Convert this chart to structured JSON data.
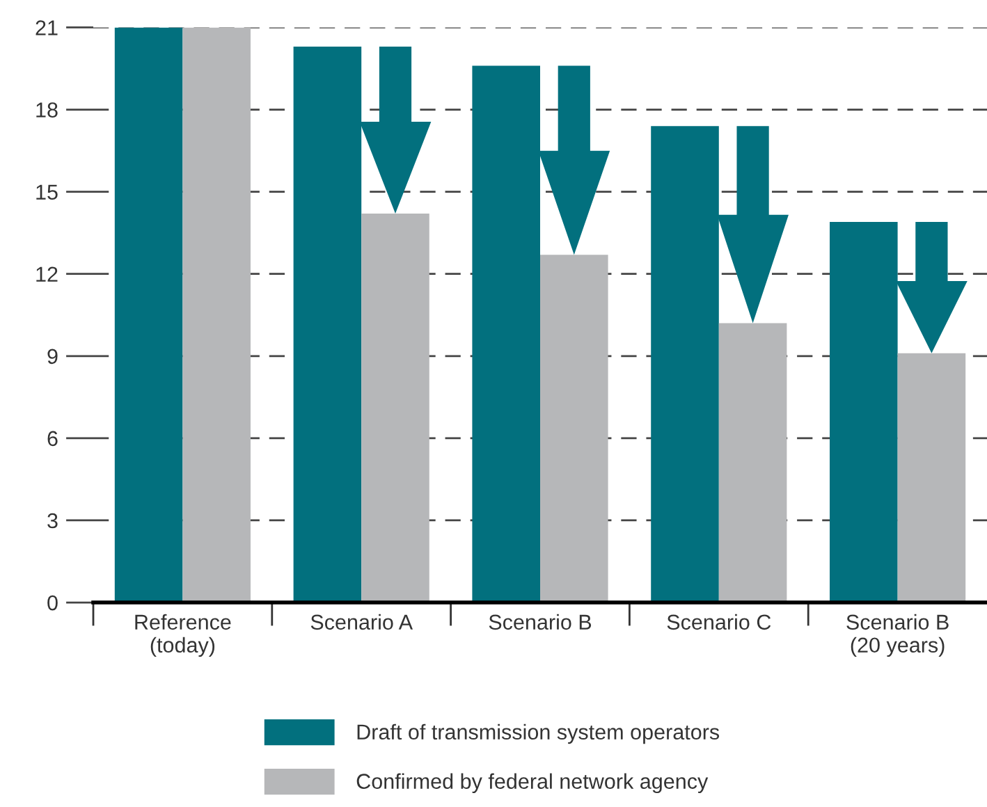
{
  "chart_data": {
    "type": "bar",
    "categories": [
      "Reference\n(today)",
      "Scenario A",
      "Scenario B",
      "Scenario C",
      "Scenario B\n(20 years)"
    ],
    "series": [
      {
        "name": "Draft of transmission system operators",
        "color": "#02707e",
        "values": [
          21,
          20.3,
          19.6,
          17.4,
          13.9
        ]
      },
      {
        "name": "Confirmed by federal network agency",
        "color": "#b6b7b9",
        "values": [
          21,
          14.2,
          12.7,
          10.2,
          9.1
        ]
      }
    ],
    "ylim": [
      0,
      21
    ],
    "yticks": [
      0,
      3,
      6,
      9,
      12,
      15,
      18,
      21
    ],
    "grid": "y",
    "legend": "bottom"
  }
}
